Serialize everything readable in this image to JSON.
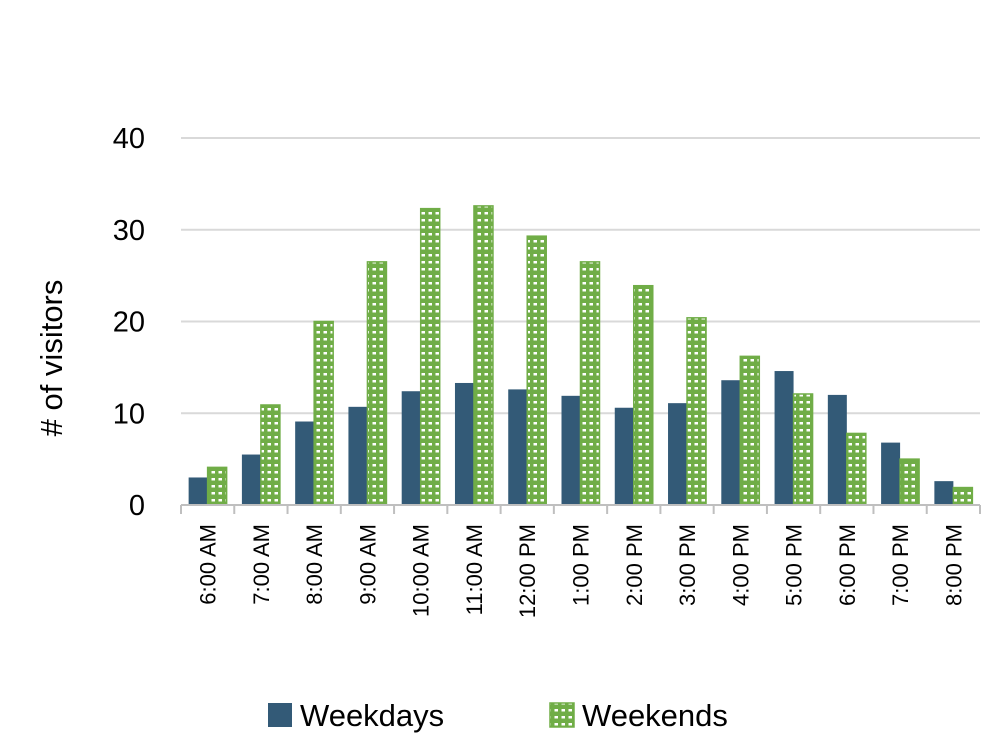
{
  "chart_data": {
    "type": "bar",
    "title": "",
    "xlabel": "",
    "ylabel": "# of visitors",
    "ylim": [
      0,
      40
    ],
    "yticks": [
      0,
      10,
      20,
      30,
      40
    ],
    "grid": true,
    "legend_position": "bottom",
    "categories": [
      "6:00 AM",
      "7:00 AM",
      "8:00 AM",
      "9:00 AM",
      "10:00 AM",
      "11:00 AM",
      "12:00 PM",
      "1:00 PM",
      "2:00 PM",
      "3:00 PM",
      "4:00 PM",
      "5:00 PM",
      "6:00 PM",
      "7:00 PM",
      "8:00 PM"
    ],
    "series": [
      {
        "name": "Weekdays",
        "color": "#335a77",
        "pattern": "solid",
        "values": [
          3.0,
          5.5,
          9.1,
          10.7,
          12.4,
          13.3,
          12.6,
          11.9,
          10.6,
          11.1,
          13.6,
          14.6,
          12.0,
          6.8,
          2.6
        ]
      },
      {
        "name": "Weekends",
        "color": "#70ad47",
        "pattern": "dotted-grid",
        "values": [
          4.1,
          10.9,
          20.0,
          26.5,
          32.3,
          32.6,
          29.3,
          26.5,
          23.9,
          20.4,
          16.2,
          12.1,
          7.8,
          5.0,
          1.9
        ]
      }
    ]
  }
}
